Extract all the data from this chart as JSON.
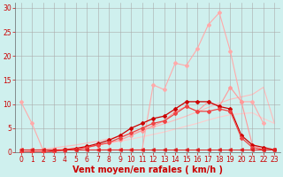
{
  "background_color": "#cff0ee",
  "grid_color": "#aaaaaa",
  "xlabel": "Vent moyen/en rafales ( km/h )",
  "xlabel_color": "#cc0000",
  "xlabel_fontsize": 7,
  "tick_color": "#cc0000",
  "xlim": [
    -0.5,
    23.5
  ],
  "ylim": [
    0,
    31
  ],
  "yticks": [
    0,
    5,
    10,
    15,
    20,
    25,
    30
  ],
  "xticks": [
    0,
    1,
    2,
    3,
    4,
    5,
    6,
    7,
    8,
    9,
    10,
    11,
    12,
    13,
    14,
    15,
    16,
    17,
    18,
    19,
    20,
    21,
    22,
    23
  ],
  "lines": [
    {
      "x": [
        0,
        1,
        2,
        3,
        4,
        5,
        6,
        7,
        8,
        9,
        10,
        11,
        12,
        13,
        14,
        15,
        16,
        17,
        18,
        19,
        20,
        21,
        22
      ],
      "y": [
        10.5,
        6.0,
        0.5,
        0.5,
        0.5,
        0.5,
        0.5,
        0.5,
        0.5,
        0.5,
        0.5,
        0.5,
        14.0,
        13.0,
        18.5,
        18.0,
        21.5,
        26.5,
        29.0,
        21.0,
        10.5,
        10.5,
        6.0
      ],
      "color": "#ffaaaa",
      "lw": 0.8,
      "marker": "D",
      "ms": 2.0,
      "zorder": 2
    },
    {
      "x": [
        0,
        1,
        2,
        3,
        4,
        5,
        6,
        7,
        8,
        9,
        10,
        11,
        12,
        13,
        14,
        15,
        16,
        17,
        18,
        19,
        20,
        21,
        22,
        23
      ],
      "y": [
        0.0,
        0.3,
        0.6,
        0.9,
        1.2,
        1.5,
        1.9,
        2.3,
        2.8,
        3.3,
        3.9,
        4.5,
        5.2,
        5.9,
        6.7,
        7.5,
        8.4,
        9.3,
        10.2,
        11.0,
        11.5,
        12.0,
        13.5,
        6.0
      ],
      "color": "#ffbbbb",
      "lw": 0.8,
      "marker": null,
      "ms": 0,
      "zorder": 1
    },
    {
      "x": [
        0,
        1,
        2,
        3,
        4,
        5,
        6,
        7,
        8,
        9,
        10,
        11,
        12,
        13,
        14,
        15,
        16,
        17,
        18,
        19,
        20,
        21,
        22,
        23
      ],
      "y": [
        0.0,
        0.1,
        0.3,
        0.5,
        0.7,
        0.9,
        1.2,
        1.5,
        1.9,
        2.3,
        2.7,
        3.2,
        3.7,
        4.2,
        4.8,
        5.4,
        6.0,
        6.7,
        7.3,
        7.8,
        8.0,
        8.2,
        7.0,
        6.0
      ],
      "color": "#ffcccc",
      "lw": 0.8,
      "marker": null,
      "ms": 0,
      "zorder": 1
    },
    {
      "x": [
        0,
        1,
        2,
        3,
        4,
        5,
        6,
        7,
        8,
        9,
        10,
        11,
        12,
        13,
        14,
        15,
        16,
        17,
        18,
        19,
        20,
        21,
        22,
        23
      ],
      "y": [
        0.5,
        0.5,
        0.5,
        0.5,
        0.5,
        0.5,
        1.0,
        1.5,
        2.0,
        2.5,
        3.5,
        4.5,
        5.5,
        6.5,
        8.5,
        9.5,
        8.5,
        10.5,
        9.5,
        13.5,
        10.5,
        1.5,
        0.5,
        0.5
      ],
      "color": "#ff9999",
      "lw": 0.8,
      "marker": "D",
      "ms": 2.0,
      "zorder": 3
    },
    {
      "x": [
        0,
        1,
        2,
        3,
        4,
        5,
        6,
        7,
        8,
        9,
        10,
        11,
        12,
        13,
        14,
        15,
        16,
        17,
        18,
        19,
        20,
        21,
        22,
        23
      ],
      "y": [
        0.5,
        0.5,
        0.5,
        0.5,
        0.5,
        0.5,
        0.5,
        0.5,
        0.5,
        0.5,
        0.5,
        0.5,
        0.5,
        0.5,
        0.5,
        0.5,
        0.5,
        0.5,
        0.5,
        0.5,
        0.5,
        0.5,
        0.5,
        0.5
      ],
      "color": "#dd2222",
      "lw": 0.7,
      "marker": "<",
      "ms": 2.5,
      "zorder": 5
    },
    {
      "x": [
        0,
        1,
        2,
        3,
        4,
        5,
        6,
        7,
        8,
        9,
        10,
        11,
        12,
        13,
        14,
        15,
        16,
        17,
        18,
        19,
        20,
        21,
        22,
        23
      ],
      "y": [
        0.0,
        0.0,
        0.0,
        0.3,
        0.5,
        0.8,
        1.2,
        1.8,
        2.5,
        3.5,
        5.0,
        6.0,
        7.0,
        7.5,
        9.0,
        10.5,
        10.5,
        10.5,
        9.5,
        9.0,
        3.5,
        1.5,
        1.0,
        0.5
      ],
      "color": "#cc0000",
      "lw": 0.9,
      "marker": "D",
      "ms": 2.0,
      "zorder": 4
    },
    {
      "x": [
        0,
        1,
        2,
        3,
        4,
        5,
        6,
        7,
        8,
        9,
        10,
        11,
        12,
        13,
        14,
        15,
        16,
        17,
        18,
        19,
        20,
        21,
        22,
        23
      ],
      "y": [
        0.0,
        0.0,
        0.0,
        0.2,
        0.4,
        0.6,
        1.0,
        1.5,
        2.0,
        3.0,
        4.0,
        5.0,
        6.0,
        6.5,
        8.0,
        9.5,
        8.5,
        8.5,
        9.0,
        8.5,
        3.0,
        1.0,
        0.5,
        0.5
      ],
      "color": "#ee4444",
      "lw": 0.9,
      "marker": "D",
      "ms": 2.0,
      "zorder": 4
    }
  ]
}
